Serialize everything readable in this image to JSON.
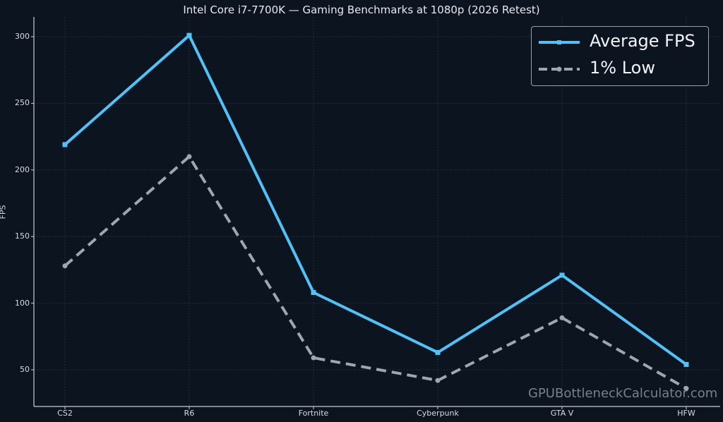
{
  "title": "Intel Core i7-7700K — Gaming Benchmarks at 1080p (2026 Retest)",
  "watermark": "GPUBottleneckCalculator.com",
  "colors": {
    "background": "#0c1420",
    "avg": "#4fc3f7",
    "low": "#9ea6b0",
    "grid": "#2a3442",
    "axis": "#c9ced6"
  },
  "chart_data": {
    "type": "line",
    "title": "Intel Core i7-7700K — Gaming Benchmarks at 1080p (2026 Retest)",
    "xlabel": "",
    "ylabel": "FPS",
    "categories": [
      "CS2",
      "R6",
      "Fortnite",
      "Cyberpunk",
      "GTA V",
      "HFW"
    ],
    "series": [
      {
        "name": "Average FPS",
        "values": [
          219,
          301,
          108,
          63,
          121,
          54
        ],
        "style": "solid",
        "marker": "square"
      },
      {
        "name": "1% Low",
        "values": [
          128,
          210,
          59,
          42,
          89,
          36
        ],
        "style": "dashed",
        "marker": "circle"
      }
    ],
    "yticks": [
      50,
      100,
      150,
      200,
      250,
      300
    ],
    "ylim": [
      22,
      308
    ],
    "grid": true,
    "legend_position": "upper right"
  },
  "legend": [
    {
      "label": "Average FPS"
    },
    {
      "label": "1% Low"
    }
  ]
}
